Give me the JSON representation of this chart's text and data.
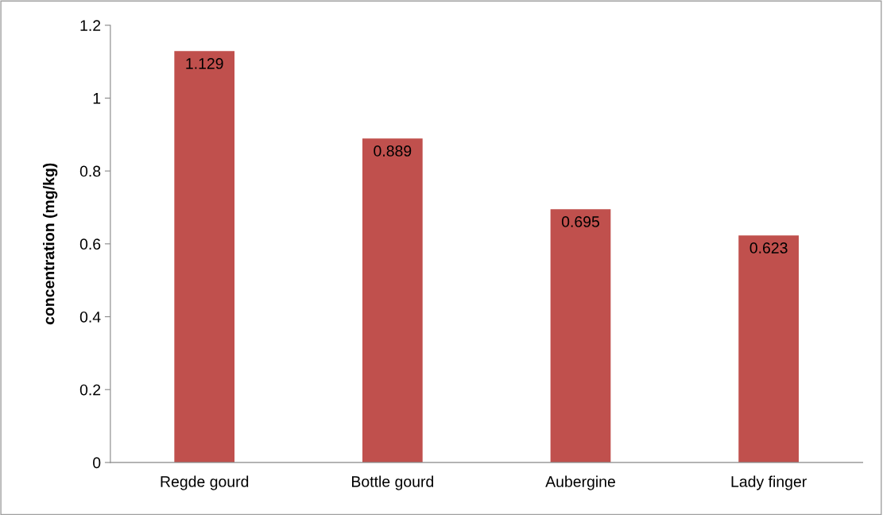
{
  "chart_data": {
    "type": "bar",
    "ylabel": "concentration (mg/kg)",
    "categories": [
      "Regde gourd",
      "Bottle gourd",
      "Aubergine",
      "Lady finger"
    ],
    "values": [
      1.129,
      0.889,
      0.695,
      0.623
    ],
    "color": "#c0504d",
    "ylim": [
      0,
      1.2
    ],
    "yticks": [
      0,
      0.2,
      0.4,
      0.6,
      0.8,
      1,
      1.2
    ],
    "grid": false,
    "data_labels": true
  }
}
